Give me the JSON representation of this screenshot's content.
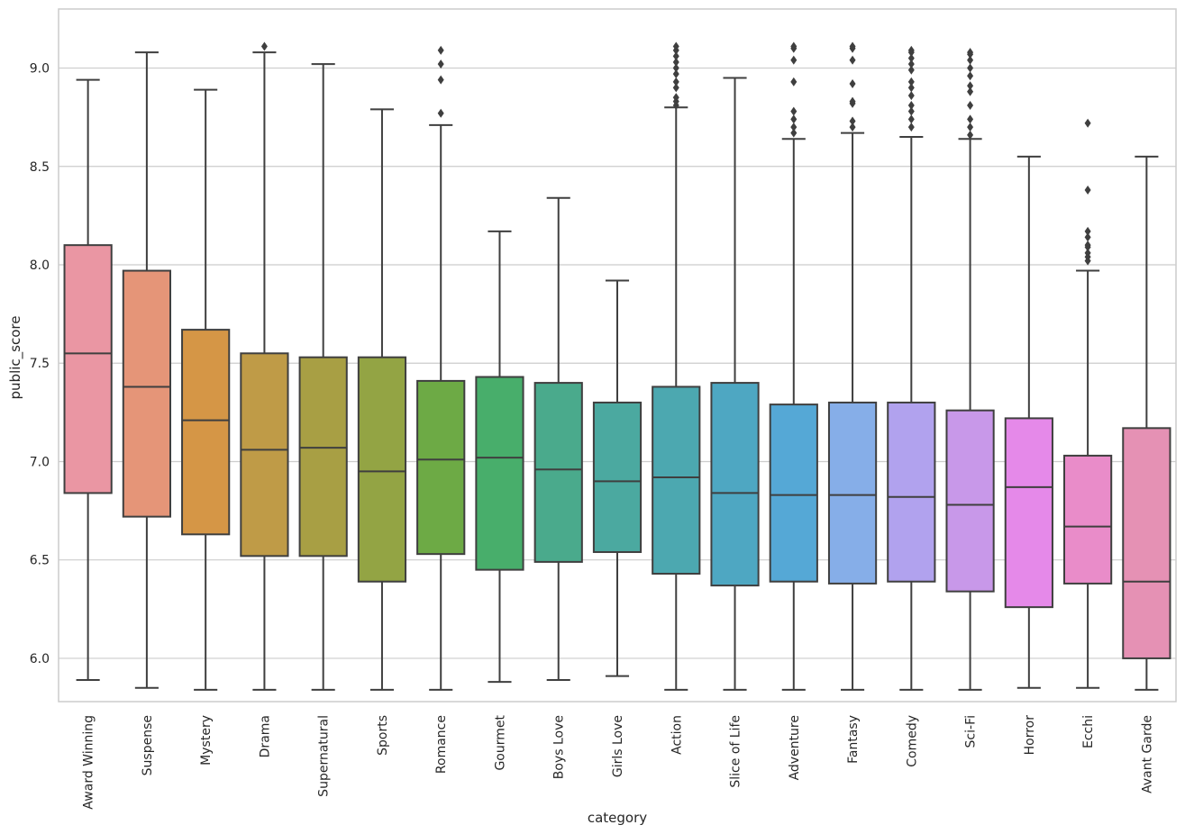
{
  "chart_data": {
    "type": "box",
    "xlabel": "category",
    "ylabel": "public_score",
    "ylim": [
      5.78,
      9.3
    ],
    "yticks": [
      6.0,
      6.5,
      7.0,
      7.5,
      8.0,
      8.5,
      9.0
    ],
    "ytick_labels": [
      "6.0",
      "6.5",
      "7.0",
      "7.5",
      "8.0",
      "8.5",
      "9.0"
    ],
    "grid": "horizontal",
    "categories": [
      "Award Winning",
      "Suspense",
      "Mystery",
      "Drama",
      "Supernatural",
      "Sports",
      "Romance",
      "Gourmet",
      "Boys Love",
      "Girls Love",
      "Action",
      "Slice of Life",
      "Adventure",
      "Fantasy",
      "Comedy",
      "Sci-Fi",
      "Horror",
      "Ecchi",
      "Avant Garde"
    ],
    "colors": [
      "#ea96a3",
      "#e59578",
      "#d59646",
      "#bf9b47",
      "#a89f44",
      "#93a444",
      "#6daa45",
      "#48ae6b",
      "#4aaa8c",
      "#4ba9a0",
      "#4ca8b0",
      "#4ea7c2",
      "#55a8d6",
      "#86aee8",
      "#b1a2ee",
      "#c898e9",
      "#e589e9",
      "#e98cc9",
      "#e591b4"
    ],
    "boxes": [
      {
        "whislo": 5.89,
        "q1": 6.84,
        "med": 7.55,
        "q3": 8.1,
        "whishi": 8.94,
        "fliers": []
      },
      {
        "whislo": 5.85,
        "q1": 6.72,
        "med": 7.38,
        "q3": 7.97,
        "whishi": 9.08,
        "fliers": []
      },
      {
        "whislo": 5.84,
        "q1": 6.63,
        "med": 7.21,
        "q3": 7.67,
        "whishi": 8.89,
        "fliers": []
      },
      {
        "whislo": 5.84,
        "q1": 6.52,
        "med": 7.06,
        "q3": 7.55,
        "whishi": 9.08,
        "fliers": [
          9.11
        ]
      },
      {
        "whislo": 5.84,
        "q1": 6.52,
        "med": 7.07,
        "q3": 7.53,
        "whishi": 9.02,
        "fliers": []
      },
      {
        "whislo": 5.84,
        "q1": 6.39,
        "med": 6.95,
        "q3": 7.53,
        "whishi": 8.79,
        "fliers": []
      },
      {
        "whislo": 5.84,
        "q1": 6.53,
        "med": 7.01,
        "q3": 7.41,
        "whishi": 8.71,
        "fliers": [
          8.77,
          8.94,
          9.02,
          9.09
        ]
      },
      {
        "whislo": 5.88,
        "q1": 6.45,
        "med": 7.02,
        "q3": 7.43,
        "whishi": 8.17,
        "fliers": []
      },
      {
        "whislo": 5.89,
        "q1": 6.49,
        "med": 6.96,
        "q3": 7.4,
        "whishi": 8.34,
        "fliers": []
      },
      {
        "whislo": 5.91,
        "q1": 6.54,
        "med": 6.9,
        "q3": 7.3,
        "whishi": 7.92,
        "fliers": []
      },
      {
        "whislo": 5.84,
        "q1": 6.43,
        "med": 6.92,
        "q3": 7.38,
        "whishi": 8.8,
        "fliers": [
          8.81,
          8.83,
          8.85,
          8.9,
          8.93,
          8.97,
          9.0,
          9.03,
          9.06,
          9.09,
          9.11
        ]
      },
      {
        "whislo": 5.84,
        "q1": 6.37,
        "med": 6.84,
        "q3": 7.4,
        "whishi": 8.95,
        "fliers": []
      },
      {
        "whislo": 5.84,
        "q1": 6.39,
        "med": 6.83,
        "q3": 7.29,
        "whishi": 8.64,
        "fliers": [
          8.67,
          8.7,
          8.74,
          8.78,
          8.93,
          9.04,
          9.1,
          9.11
        ]
      },
      {
        "whislo": 5.84,
        "q1": 6.38,
        "med": 6.83,
        "q3": 7.3,
        "whishi": 8.67,
        "fliers": [
          8.7,
          8.73,
          8.82,
          8.83,
          8.92,
          9.04,
          9.1,
          9.11
        ]
      },
      {
        "whislo": 5.84,
        "q1": 6.39,
        "med": 6.82,
        "q3": 7.3,
        "whishi": 8.65,
        "fliers": [
          8.7,
          8.74,
          8.78,
          8.81,
          8.86,
          8.9,
          8.93,
          8.99,
          9.02,
          9.05,
          9.08,
          9.09
        ]
      },
      {
        "whislo": 5.84,
        "q1": 6.34,
        "med": 6.78,
        "q3": 7.26,
        "whishi": 8.64,
        "fliers": [
          8.66,
          8.7,
          8.74,
          8.81,
          8.88,
          8.91,
          8.96,
          9.0,
          9.04,
          9.07,
          9.08
        ]
      },
      {
        "whislo": 5.85,
        "q1": 6.26,
        "med": 6.87,
        "q3": 7.22,
        "whishi": 8.55,
        "fliers": []
      },
      {
        "whislo": 5.85,
        "q1": 6.38,
        "med": 6.67,
        "q3": 7.03,
        "whishi": 7.97,
        "fliers": [
          8.02,
          8.04,
          8.06,
          8.09,
          8.1,
          8.14,
          8.17,
          8.38,
          8.72
        ]
      },
      {
        "whislo": 5.84,
        "q1": 6.0,
        "med": 6.39,
        "q3": 7.17,
        "whishi": 8.55,
        "fliers": []
      }
    ]
  }
}
